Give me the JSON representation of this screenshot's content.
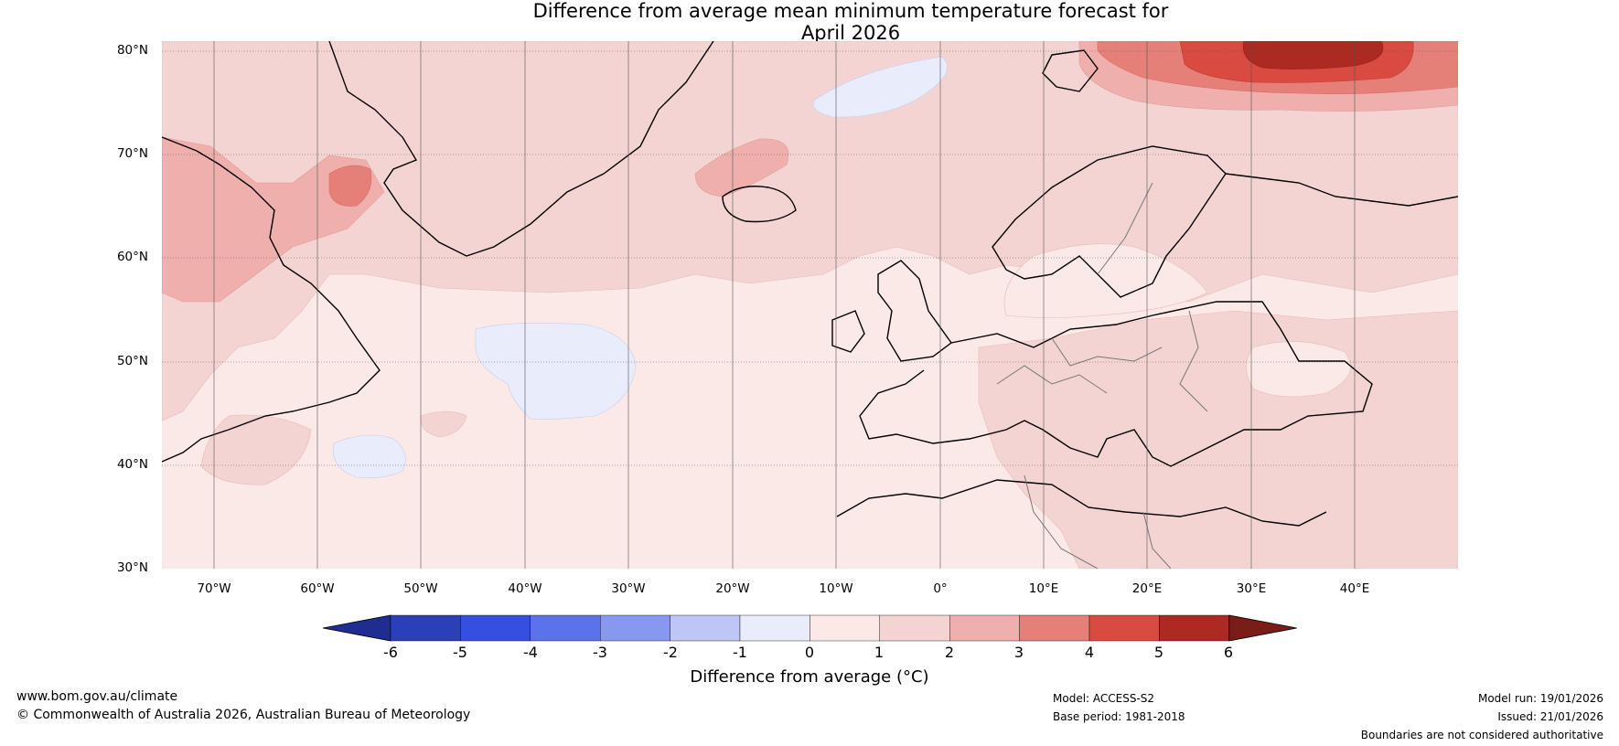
{
  "title_line1": "Difference from average mean minimum temperature forecast for",
  "title_line2": "April 2026",
  "lat_labels": [
    "80°N",
    "70°N",
    "60°N",
    "50°N",
    "40°N",
    "30°N"
  ],
  "lon_labels": [
    "70°W",
    "60°W",
    "50°W",
    "40°W",
    "30°W",
    "20°W",
    "10°W",
    "0°",
    "10°E",
    "20°E",
    "30°E",
    "40°E"
  ],
  "colorbar": {
    "ticks": [
      "-6",
      "-5",
      "-4",
      "-3",
      "-2",
      "-1",
      "0",
      "1",
      "2",
      "3",
      "4",
      "5",
      "6"
    ],
    "label": "Difference from average (°C)",
    "colors": [
      "#1e2d8f",
      "#2a3fb8",
      "#3550e0",
      "#5a72ea",
      "#8799ee",
      "#bdc6f4",
      "#e9ecfb",
      "#fce9e7",
      "#f4d4d3",
      "#efb0ad",
      "#e58079",
      "#d94a40",
      "#ad2a22",
      "#7a1c18"
    ]
  },
  "footer": {
    "website": "www.bom.gov.au/climate",
    "copyright": "© Commonwealth of Australia 2026, Australian Bureau of Meteorology",
    "model": "Model: ACCESS-S2",
    "base_period": "Base period: 1981-2018",
    "model_run": "Model run: 19/01/2026",
    "issued": "Issued: 21/01/2026",
    "disclaimer": "Boundaries are not considered authoritative"
  }
}
